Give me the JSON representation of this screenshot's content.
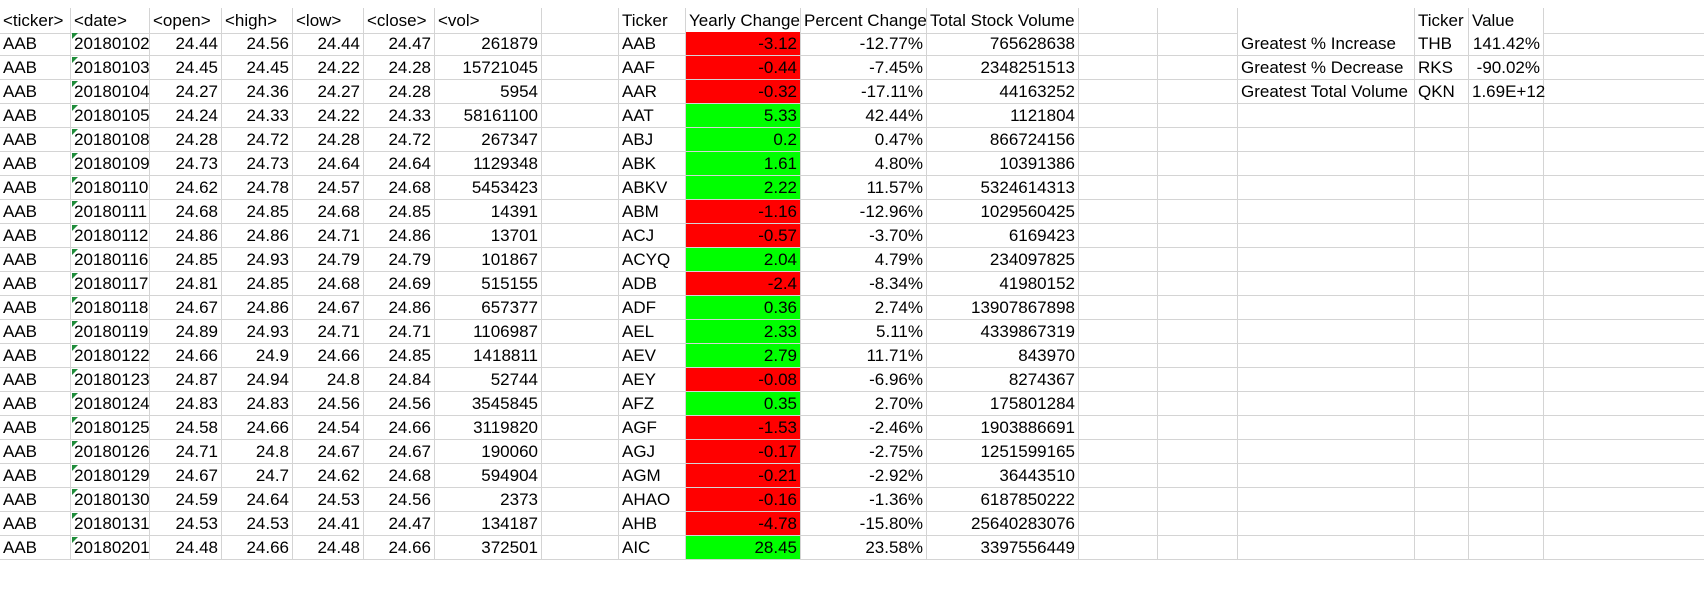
{
  "sheet": {
    "headers": {
      "ticker": "<ticker>",
      "date": "<date>",
      "open": "<open>",
      "high": "<high>",
      "low": "<low>",
      "close": "<close>",
      "vol": "<vol>",
      "summary_ticker": "Ticker",
      "yearly_change": "Yearly Change",
      "percent_change": "Percent Change",
      "total_volume": "Total Stock Volume",
      "right_ticker": "Ticker",
      "right_value": "Value"
    },
    "raw_rows": [
      [
        "AAB",
        "20180102",
        "24.44",
        "24.56",
        "24.44",
        "24.47",
        "261879"
      ],
      [
        "AAB",
        "20180103",
        "24.45",
        "24.45",
        "24.22",
        "24.28",
        "15721045"
      ],
      [
        "AAB",
        "20180104",
        "24.27",
        "24.36",
        "24.27",
        "24.28",
        "5954"
      ],
      [
        "AAB",
        "20180105",
        "24.24",
        "24.33",
        "24.22",
        "24.33",
        "58161100"
      ],
      [
        "AAB",
        "20180108",
        "24.28",
        "24.72",
        "24.28",
        "24.72",
        "267347"
      ],
      [
        "AAB",
        "20180109",
        "24.73",
        "24.73",
        "24.64",
        "24.64",
        "1129348"
      ],
      [
        "AAB",
        "20180110",
        "24.62",
        "24.78",
        "24.57",
        "24.68",
        "5453423"
      ],
      [
        "AAB",
        "20180111",
        "24.68",
        "24.85",
        "24.68",
        "24.85",
        "14391"
      ],
      [
        "AAB",
        "20180112",
        "24.86",
        "24.86",
        "24.71",
        "24.86",
        "13701"
      ],
      [
        "AAB",
        "20180116",
        "24.85",
        "24.93",
        "24.79",
        "24.79",
        "101867"
      ],
      [
        "AAB",
        "20180117",
        "24.81",
        "24.85",
        "24.68",
        "24.69",
        "515155"
      ],
      [
        "AAB",
        "20180118",
        "24.67",
        "24.86",
        "24.67",
        "24.86",
        "657377"
      ],
      [
        "AAB",
        "20180119",
        "24.89",
        "24.93",
        "24.71",
        "24.71",
        "1106987"
      ],
      [
        "AAB",
        "20180122",
        "24.66",
        "24.9",
        "24.66",
        "24.85",
        "1418811"
      ],
      [
        "AAB",
        "20180123",
        "24.87",
        "24.94",
        "24.8",
        "24.84",
        "52744"
      ],
      [
        "AAB",
        "20180124",
        "24.83",
        "24.83",
        "24.56",
        "24.56",
        "3545845"
      ],
      [
        "AAB",
        "20180125",
        "24.58",
        "24.66",
        "24.54",
        "24.66",
        "3119820"
      ],
      [
        "AAB",
        "20180126",
        "24.71",
        "24.8",
        "24.67",
        "24.67",
        "190060"
      ],
      [
        "AAB",
        "20180129",
        "24.67",
        "24.7",
        "24.62",
        "24.68",
        "594904"
      ],
      [
        "AAB",
        "20180130",
        "24.59",
        "24.64",
        "24.53",
        "24.56",
        "2373"
      ],
      [
        "AAB",
        "20180131",
        "24.53",
        "24.53",
        "24.41",
        "24.47",
        "134187"
      ],
      [
        "AAB",
        "20180201",
        "24.48",
        "24.66",
        "24.48",
        "24.66",
        "372501"
      ]
    ],
    "summary_rows": [
      [
        "AAB",
        "-3.12",
        "-12.77%",
        "765628638"
      ],
      [
        "AAF",
        "-0.44",
        "-7.45%",
        "2348251513"
      ],
      [
        "AAR",
        "-0.32",
        "-17.11%",
        "44163252"
      ],
      [
        "AAT",
        "5.33",
        "42.44%",
        "1121804"
      ],
      [
        "ABJ",
        "0.2",
        "0.47%",
        "866724156"
      ],
      [
        "ABK",
        "1.61",
        "4.80%",
        "10391386"
      ],
      [
        "ABKV",
        "2.22",
        "11.57%",
        "5324614313"
      ],
      [
        "ABM",
        "-1.16",
        "-12.96%",
        "1029560425"
      ],
      [
        "ACJ",
        "-0.57",
        "-3.70%",
        "6169423"
      ],
      [
        "ACYQ",
        "2.04",
        "4.79%",
        "234097825"
      ],
      [
        "ADB",
        "-2.4",
        "-8.34%",
        "41980152"
      ],
      [
        "ADF",
        "0.36",
        "2.74%",
        "13907867898"
      ],
      [
        "AEL",
        "2.33",
        "5.11%",
        "4339867319"
      ],
      [
        "AEV",
        "2.79",
        "11.71%",
        "843970"
      ],
      [
        "AEY",
        "-0.08",
        "-6.96%",
        "8274367"
      ],
      [
        "AFZ",
        "0.35",
        "2.70%",
        "175801284"
      ],
      [
        "AGF",
        "-1.53",
        "-2.46%",
        "1903886691"
      ],
      [
        "AGJ",
        "-0.17",
        "-2.75%",
        "1251599165"
      ],
      [
        "AGM",
        "-0.21",
        "-2.92%",
        "36443510"
      ],
      [
        "AHAO",
        "-0.16",
        "-1.36%",
        "6187850222"
      ],
      [
        "AHB",
        "-4.78",
        "-15.80%",
        "25640283076"
      ],
      [
        "AIC",
        "28.45",
        "23.58%",
        "3397556449"
      ]
    ],
    "greatest": [
      [
        "Greatest % Increase",
        "THB",
        "141.42%"
      ],
      [
        "Greatest % Decrease",
        "RKS",
        "-90.02%"
      ],
      [
        "Greatest Total Volume",
        "QKN",
        "1.69E+12"
      ]
    ],
    "colors": {
      "positive_fill": "#00ff00",
      "negative_fill": "#ff0000",
      "gridline": "#d4d4d4",
      "date_flag": "#1f8c3a"
    }
  }
}
